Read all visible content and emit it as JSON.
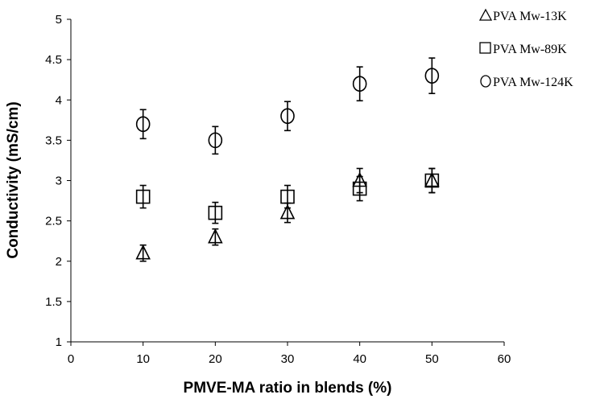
{
  "chart_data": {
    "type": "scatter",
    "xlabel": "PMVE-MA ratio in blends (%)",
    "ylabel": "Conductivity (mS/cm)",
    "xlim": [
      0,
      60
    ],
    "ylim": [
      1,
      5
    ],
    "xticks": [
      0,
      10,
      20,
      30,
      40,
      50,
      60
    ],
    "yticks": [
      1,
      1.5,
      2,
      2.5,
      3,
      3.5,
      4,
      4.5,
      5
    ],
    "xtick_labels": [
      "0",
      "10",
      "20",
      "30",
      "40",
      "50",
      "60"
    ],
    "ytick_labels": [
      "1",
      "1.5",
      "2",
      "2.5",
      "3",
      "3.5",
      "4",
      "4.5",
      "5"
    ],
    "grid": false,
    "legend_position": "top-right",
    "series": [
      {
        "name": "PVA Mw-13K",
        "marker": "triangle",
        "x": [
          10,
          20,
          30,
          40,
          50
        ],
        "y": [
          2.1,
          2.3,
          2.6,
          3.0,
          3.0
        ],
        "error": [
          0.1,
          0.1,
          0.12,
          0.15,
          0.15
        ]
      },
      {
        "name": "PVA Mw-89K",
        "marker": "square",
        "x": [
          10,
          20,
          30,
          40,
          50
        ],
        "y": [
          2.8,
          2.6,
          2.8,
          2.9,
          3.0
        ],
        "error": [
          0.14,
          0.13,
          0.14,
          0.15,
          0.15
        ]
      },
      {
        "name": "PVA Mw-124K",
        "marker": "circle",
        "x": [
          10,
          20,
          30,
          40,
          50
        ],
        "y": [
          3.7,
          3.5,
          3.8,
          4.2,
          4.3
        ],
        "error": [
          0.18,
          0.17,
          0.18,
          0.21,
          0.22
        ]
      }
    ]
  }
}
